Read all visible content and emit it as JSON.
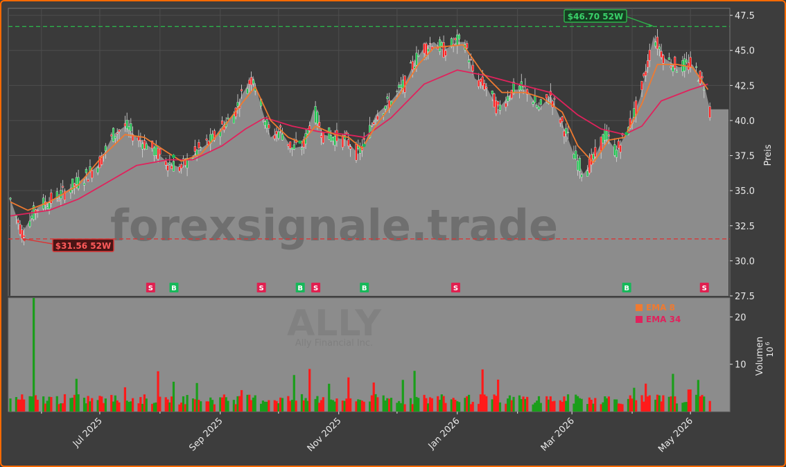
{
  "colors": {
    "background": "#3d3d3d",
    "frame_border": "#ff6a00",
    "plot_area": "#3a3a3a",
    "close_area": "#8c8c8c",
    "up_candle": "#1ec24f",
    "down_candle": "#ff1f1f",
    "ema_fast": "#f07a30",
    "ema_slow": "#e0225c",
    "high_line": "#2db34a",
    "low_line": "#d93636",
    "signal_buy": "#17b85a",
    "signal_sell": "#e02050",
    "volume_up": "#1a9e1a",
    "volume_down": "#ff1a1a",
    "axis_text": "#e8e8e8",
    "watermark": "#595959"
  },
  "watermark": {
    "text": "forexsignale.trade"
  },
  "ticker": {
    "symbol": "ALLY",
    "name": "Ally Financial Inc."
  },
  "price_panel": {
    "ylabel": "Preis",
    "yticks": [
      "47.5",
      "45.0",
      "42.5",
      "40.0",
      "37.5",
      "35.0",
      "32.5",
      "30.0",
      "27.5"
    ],
    "high_label": "$46.70 52W",
    "low_label": "$31.56 52W"
  },
  "volume_panel": {
    "ylabel": "Volumen",
    "unit": "10",
    "unit_exp": "6",
    "yticks": [
      "20",
      "10"
    ],
    "legend": [
      {
        "label": "EMA 8"
      },
      {
        "label": "EMA 34"
      }
    ]
  },
  "x_axis": {
    "labels": [
      "Jul 2025",
      "Sep 2025",
      "Nov 2025",
      "Jan 2026",
      "Mar 2026",
      "May 2026"
    ]
  },
  "signals": [
    {
      "type": "S",
      "date": "2025-07-27"
    },
    {
      "type": "B",
      "date": "2025-08-08"
    },
    {
      "type": "S",
      "date": "2025-09-22"
    },
    {
      "type": "B",
      "date": "2025-10-12"
    },
    {
      "type": "S",
      "date": "2025-10-20"
    },
    {
      "type": "B",
      "date": "2025-11-14"
    },
    {
      "type": "S",
      "date": "2025-12-31"
    },
    {
      "type": "B",
      "date": "2026-03-29"
    },
    {
      "type": "S",
      "date": "2026-05-08"
    }
  ],
  "chart_data": {
    "type": "candlestick",
    "title": "",
    "ylabel": "Preis",
    "ylim": [
      27.5,
      48.0
    ],
    "x_range": [
      "2025-05-16",
      "2026-05-17"
    ],
    "high_52w": {
      "value": 46.7,
      "date": "2026-04-12"
    },
    "low_52w": {
      "value": 31.56,
      "date": "2025-05-22"
    },
    "close_path": [
      [
        "2025-05-16",
        34.4
      ],
      [
        "2025-05-22",
        32.0
      ],
      [
        "2025-05-30",
        33.8
      ],
      [
        "2025-06-10",
        34.6
      ],
      [
        "2025-06-20",
        35.6
      ],
      [
        "2025-06-30",
        36.8
      ],
      [
        "2025-07-08",
        39.0
      ],
      [
        "2025-07-14",
        39.6
      ],
      [
        "2025-07-20",
        38.8
      ],
      [
        "2025-07-28",
        38.0
      ],
      [
        "2025-08-05",
        37.0
      ],
      [
        "2025-08-12",
        36.6
      ],
      [
        "2025-08-20",
        37.8
      ],
      [
        "2025-08-28",
        38.6
      ],
      [
        "2025-09-02",
        39.6
      ],
      [
        "2025-09-08",
        40.4
      ],
      [
        "2025-09-12",
        41.8
      ],
      [
        "2025-09-18",
        43.2
      ],
      [
        "2025-09-22",
        41.0
      ],
      [
        "2025-09-27",
        38.8
      ],
      [
        "2025-10-02",
        39.3
      ],
      [
        "2025-10-08",
        38.0
      ],
      [
        "2025-10-14",
        38.2
      ],
      [
        "2025-10-19",
        40.8
      ],
      [
        "2025-10-24",
        39.0
      ],
      [
        "2025-10-30",
        38.8
      ],
      [
        "2025-11-05",
        38.6
      ],
      [
        "2025-11-11",
        37.6
      ],
      [
        "2025-11-15",
        38.6
      ],
      [
        "2025-11-20",
        40.4
      ],
      [
        "2025-11-28",
        41.4
      ],
      [
        "2025-12-05",
        42.6
      ],
      [
        "2025-12-10",
        44.2
      ],
      [
        "2025-12-15",
        45.2
      ],
      [
        "2025-12-20",
        45.6
      ],
      [
        "2025-12-25",
        45.0
      ],
      [
        "2026-01-01",
        45.6
      ],
      [
        "2026-01-05",
        45.6
      ],
      [
        "2026-01-10",
        43.0
      ],
      [
        "2026-01-16",
        42.4
      ],
      [
        "2026-01-22",
        40.8
      ],
      [
        "2026-01-30",
        42.2
      ],
      [
        "2026-02-06",
        42.2
      ],
      [
        "2026-02-12",
        40.8
      ],
      [
        "2026-02-18",
        41.8
      ],
      [
        "2026-02-24",
        39.8
      ],
      [
        "2026-03-02",
        37.6
      ],
      [
        "2026-03-07",
        36.2
      ],
      [
        "2026-03-12",
        37.2
      ],
      [
        "2026-03-18",
        39.0
      ],
      [
        "2026-03-24",
        37.8
      ],
      [
        "2026-03-30",
        39.4
      ],
      [
        "2026-04-05",
        41.6
      ],
      [
        "2026-04-12",
        46.0
      ],
      [
        "2026-04-18",
        44.4
      ],
      [
        "2026-04-25",
        43.8
      ],
      [
        "2026-05-02",
        44.0
      ],
      [
        "2026-05-08",
        42.6
      ],
      [
        "2026-05-11",
        40.8
      ],
      [
        "2026-05-17",
        40.8
      ]
    ],
    "ema_8": [
      [
        "2025-05-16",
        34.2
      ],
      [
        "2025-05-25",
        33.6
      ],
      [
        "2025-06-05",
        34.2
      ],
      [
        "2025-06-20",
        35.4
      ],
      [
        "2025-07-02",
        37.4
      ],
      [
        "2025-07-14",
        39.0
      ],
      [
        "2025-07-24",
        38.8
      ],
      [
        "2025-08-04",
        37.8
      ],
      [
        "2025-08-12",
        37.1
      ],
      [
        "2025-08-22",
        37.6
      ],
      [
        "2025-09-02",
        39.4
      ],
      [
        "2025-09-12",
        41.2
      ],
      [
        "2025-09-19",
        42.4
      ],
      [
        "2025-09-27",
        40.0
      ],
      [
        "2025-10-06",
        38.8
      ],
      [
        "2025-10-13",
        38.4
      ],
      [
        "2025-10-20",
        39.6
      ],
      [
        "2025-10-30",
        39.0
      ],
      [
        "2025-11-06",
        38.8
      ],
      [
        "2025-11-13",
        38.0
      ],
      [
        "2025-11-20",
        39.6
      ],
      [
        "2025-12-02",
        41.8
      ],
      [
        "2025-12-12",
        44.0
      ],
      [
        "2025-12-20",
        45.2
      ],
      [
        "2026-01-04",
        45.4
      ],
      [
        "2026-01-14",
        43.4
      ],
      [
        "2026-01-24",
        42.0
      ],
      [
        "2026-02-05",
        42.0
      ],
      [
        "2026-02-14",
        41.6
      ],
      [
        "2026-02-24",
        40.6
      ],
      [
        "2026-03-04",
        38.2
      ],
      [
        "2026-03-12",
        37.0
      ],
      [
        "2026-03-20",
        38.6
      ],
      [
        "2026-03-28",
        38.8
      ],
      [
        "2026-04-06",
        41.2
      ],
      [
        "2026-04-14",
        44.0
      ],
      [
        "2026-04-24",
        44.0
      ],
      [
        "2026-05-02",
        43.8
      ],
      [
        "2026-05-10",
        42.2
      ]
    ],
    "ema_34": [
      [
        "2025-05-16",
        33.2
      ],
      [
        "2025-06-05",
        33.6
      ],
      [
        "2025-06-20",
        34.4
      ],
      [
        "2025-07-05",
        35.6
      ],
      [
        "2025-07-20",
        36.8
      ],
      [
        "2025-08-05",
        37.2
      ],
      [
        "2025-08-18",
        37.2
      ],
      [
        "2025-09-02",
        38.2
      ],
      [
        "2025-09-14",
        39.4
      ],
      [
        "2025-09-24",
        40.2
      ],
      [
        "2025-10-08",
        39.6
      ],
      [
        "2025-10-22",
        39.2
      ],
      [
        "2025-11-05",
        39.0
      ],
      [
        "2025-11-14",
        38.8
      ],
      [
        "2025-11-28",
        40.2
      ],
      [
        "2025-12-15",
        42.6
      ],
      [
        "2026-01-01",
        43.6
      ],
      [
        "2026-01-16",
        43.2
      ],
      [
        "2026-02-01",
        42.6
      ],
      [
        "2026-02-18",
        42.0
      ],
      [
        "2026-03-04",
        40.4
      ],
      [
        "2026-03-16",
        39.4
      ],
      [
        "2026-03-28",
        39.0
      ],
      [
        "2026-04-06",
        39.6
      ],
      [
        "2026-04-16",
        41.4
      ],
      [
        "2026-05-01",
        42.2
      ],
      [
        "2026-05-10",
        42.6
      ]
    ],
    "volume_ylim": [
      0,
      24
    ],
    "volume_spike": {
      "date": "2025-05-28",
      "value": 24
    }
  }
}
